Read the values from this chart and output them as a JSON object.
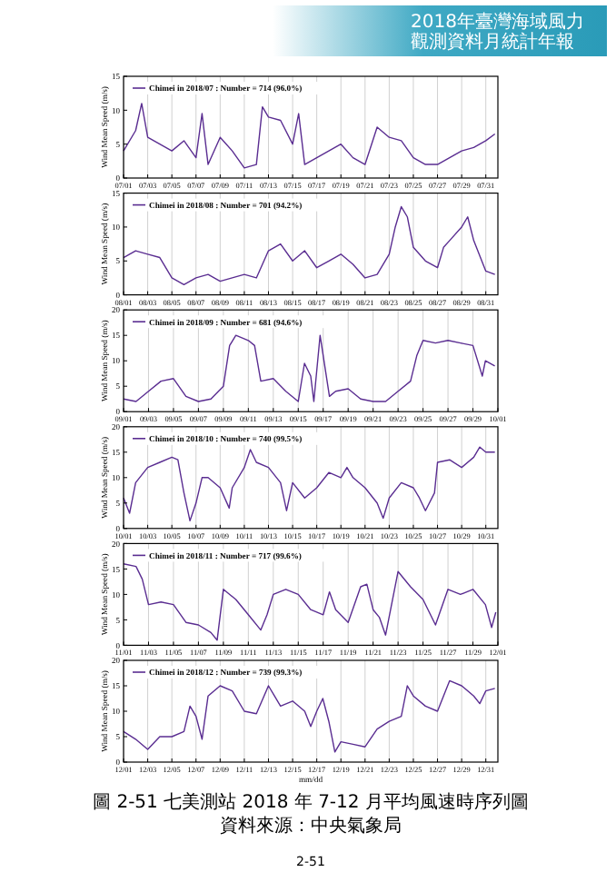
{
  "chart_data": [
    {
      "type": "line",
      "ylabel": "Wind Mean Speed (m/s)",
      "annotations": [
        "2018年臺灣海域風力",
        "觀測資料月統計年報"
      ],
      "legend": "top left",
      "grid": "x",
      "marker": "none",
      "line_style": "solid",
      "xlim": [
        "2018-07-01",
        "2018-08-01"
      ],
      "ylim": [
        0,
        15
      ],
      "yticks": [
        0,
        5,
        10,
        15
      ],
      "xticks": [
        {
          "value": "2018-07-01",
          "label": "07/01"
        },
        {
          "value": "2018-07-03",
          "label": "07/03"
        },
        {
          "value": "2018-07-05",
          "label": "07/05"
        },
        {
          "value": "2018-07-07",
          "label": "07/07"
        },
        {
          "value": "2018-07-09",
          "label": "07/09"
        },
        {
          "value": "2018-07-11",
          "label": "07/11"
        },
        {
          "value": "2018-07-13",
          "label": "07/13"
        },
        {
          "value": "2018-07-15",
          "label": "07/15"
        },
        {
          "value": "2018-07-17",
          "label": "07/17"
        },
        {
          "value": "2018-07-19",
          "label": "07/19"
        },
        {
          "value": "2018-07-21",
          "label": "07/21"
        },
        {
          "value": "2018-07-23",
          "label": "07/23"
        },
        {
          "value": "2018-07-25",
          "label": "07/25"
        },
        {
          "value": "2018-07-27",
          "label": "07/27"
        },
        {
          "value": "2018-07-29",
          "label": "07/29"
        },
        {
          "value": "2018-07-31",
          "label": "07/31"
        }
      ],
      "series": [
        {
          "name": "Chimei in 2018/07 : Number = 714 (96.0%)",
          "color": "#5a2d91",
          "x": [
            "2018-07-01T00:00",
            "2018-07-02T00:00",
            "2018-07-02T12:00",
            "2018-07-03T00:00",
            "2018-07-04T00:00",
            "2018-07-05T00:00",
            "2018-07-06T00:00",
            "2018-07-07T00:00",
            "2018-07-07T12:00",
            "2018-07-08T00:00",
            "2018-07-09T00:00",
            "2018-07-10T00:00",
            "2018-07-11T00:00",
            "2018-07-12T00:00",
            "2018-07-12T12:00",
            "2018-07-13T00:00",
            "2018-07-14T00:00",
            "2018-07-15T00:00",
            "2018-07-15T12:00",
            "2018-07-16T00:00",
            "2018-07-17T00:00",
            "2018-07-18T00:00",
            "2018-07-19T00:00",
            "2018-07-20T00:00",
            "2018-07-21T00:00",
            "2018-07-22T00:00",
            "2018-07-23T00:00",
            "2018-07-24T00:00",
            "2018-07-25T00:00",
            "2018-07-26T00:00",
            "2018-07-27T00:00",
            "2018-07-28T00:00",
            "2018-07-29T00:00",
            "2018-07-30T00:00",
            "2018-07-31T00:00",
            "2018-07-31T18:00"
          ],
          "values": [
            4,
            7,
            11,
            6,
            5,
            4,
            5.5,
            3,
            9.5,
            2,
            6,
            4,
            1.5,
            2,
            10.5,
            9,
            8.5,
            5,
            9.5,
            2,
            3,
            4,
            5,
            3,
            2,
            7.5,
            6,
            5.5,
            3,
            2,
            2,
            3,
            4,
            4.5,
            5.5,
            6.5
          ]
        }
      ]
    },
    {
      "type": "line",
      "ylabel": "Wind Mean Speed (m/s)",
      "legend": "top left",
      "grid": "x",
      "marker": "none",
      "line_style": "solid",
      "xlim": [
        "2018-08-01",
        "2018-09-01"
      ],
      "ylim": [
        0,
        15
      ],
      "yticks": [
        0,
        5,
        10,
        15
      ],
      "xticks": [
        {
          "value": "2018-08-01",
          "label": "08/01"
        },
        {
          "value": "2018-08-03",
          "label": "08/03"
        },
        {
          "value": "2018-08-05",
          "label": "08/05"
        },
        {
          "value": "2018-08-07",
          "label": "08/07"
        },
        {
          "value": "2018-08-09",
          "label": "08/09"
        },
        {
          "value": "2018-08-11",
          "label": "08/11"
        },
        {
          "value": "2018-08-13",
          "label": "08/13"
        },
        {
          "value": "2018-08-15",
          "label": "08/15"
        },
        {
          "value": "2018-08-17",
          "label": "08/17"
        },
        {
          "value": "2018-08-19",
          "label": "08/19"
        },
        {
          "value": "2018-08-21",
          "label": "08/21"
        },
        {
          "value": "2018-08-23",
          "label": "08/23"
        },
        {
          "value": "2018-08-25",
          "label": "08/25"
        },
        {
          "value": "2018-08-27",
          "label": "08/27"
        },
        {
          "value": "2018-08-29",
          "label": "08/29"
        },
        {
          "value": "2018-08-31",
          "label": "08/31"
        }
      ],
      "series": [
        {
          "name": "Chimei in 2018/08 : Number = 701 (94.2%)",
          "color": "#5a2d91",
          "x": [
            "2018-08-01T00:00",
            "2018-08-02T00:00",
            "2018-08-03T00:00",
            "2018-08-04T00:00",
            "2018-08-05T00:00",
            "2018-08-06T00:00",
            "2018-08-07T00:00",
            "2018-08-08T00:00",
            "2018-08-09T00:00",
            "2018-08-10T00:00",
            "2018-08-11T00:00",
            "2018-08-12T00:00",
            "2018-08-13T00:00",
            "2018-08-14T00:00",
            "2018-08-15T00:00",
            "2018-08-16T00:00",
            "2018-08-17T00:00",
            "2018-08-18T00:00",
            "2018-08-19T00:00",
            "2018-08-20T00:00",
            "2018-08-21T00:00",
            "2018-08-22T00:00",
            "2018-08-23T00:00",
            "2018-08-23T12:00",
            "2018-08-24T00:00",
            "2018-08-24T12:00",
            "2018-08-25T00:00",
            "2018-08-26T00:00",
            "2018-08-27T00:00",
            "2018-08-27T12:00",
            "2018-08-28T00:00",
            "2018-08-29T00:00",
            "2018-08-29T12:00",
            "2018-08-30T00:00",
            "2018-08-31T00:00",
            "2018-08-31T18:00"
          ],
          "values": [
            5.5,
            6.5,
            6,
            5.5,
            2.5,
            1.5,
            2.5,
            3,
            2,
            2.5,
            3,
            2.5,
            6.5,
            7.5,
            5,
            6.5,
            4,
            5,
            6,
            4.5,
            2.5,
            3,
            6,
            10,
            13,
            11.5,
            7,
            5,
            4,
            7,
            8,
            10,
            11.5,
            8,
            3.5,
            3
          ]
        }
      ]
    },
    {
      "type": "line",
      "ylabel": "Wind Mean Speed (m/s)",
      "legend": "top left",
      "grid": "x",
      "marker": "none",
      "line_style": "solid",
      "xlim": [
        "2018-09-01",
        "2018-10-01"
      ],
      "ylim": [
        0,
        20
      ],
      "yticks": [
        0,
        5,
        10,
        15,
        20
      ],
      "xticks": [
        {
          "value": "2018-09-01",
          "label": "09/01"
        },
        {
          "value": "2018-09-03",
          "label": "09/03"
        },
        {
          "value": "2018-09-05",
          "label": "09/05"
        },
        {
          "value": "2018-09-07",
          "label": "09/07"
        },
        {
          "value": "2018-09-09",
          "label": "09/09"
        },
        {
          "value": "2018-09-11",
          "label": "09/11"
        },
        {
          "value": "2018-09-13",
          "label": "09/13"
        },
        {
          "value": "2018-09-15",
          "label": "09/15"
        },
        {
          "value": "2018-09-17",
          "label": "09/17"
        },
        {
          "value": "2018-09-19",
          "label": "09/19"
        },
        {
          "value": "2018-09-21",
          "label": "09/21"
        },
        {
          "value": "2018-09-23",
          "label": "09/23"
        },
        {
          "value": "2018-09-25",
          "label": "09/25"
        },
        {
          "value": "2018-09-27",
          "label": "09/27"
        },
        {
          "value": "2018-09-29",
          "label": "09/29"
        },
        {
          "value": "2018-10-01",
          "label": "10/01"
        }
      ],
      "series": [
        {
          "name": "Chimei in 2018/09 : Number = 681 (94.6%)",
          "color": "#5a2d91",
          "x": [
            "2018-09-01T00:00",
            "2018-09-02T00:00",
            "2018-09-03T00:00",
            "2018-09-04T00:00",
            "2018-09-05T00:00",
            "2018-09-06T00:00",
            "2018-09-07T00:00",
            "2018-09-08T00:00",
            "2018-09-09T00:00",
            "2018-09-09T12:00",
            "2018-09-10T00:00",
            "2018-09-11T00:00",
            "2018-09-11T12:00",
            "2018-09-12T00:00",
            "2018-09-13T00:00",
            "2018-09-14T00:00",
            "2018-09-15T00:00",
            "2018-09-15T12:00",
            "2018-09-16T00:00",
            "2018-09-16T06:00",
            "2018-09-16T18:00",
            "2018-09-17T00:00",
            "2018-09-17T12:00",
            "2018-09-18T00:00",
            "2018-09-19T00:00",
            "2018-09-20T00:00",
            "2018-09-21T00:00",
            "2018-09-22T00:00",
            "2018-09-23T00:00",
            "2018-09-24T00:00",
            "2018-09-24T12:00",
            "2018-09-25T00:00",
            "2018-09-26T00:00",
            "2018-09-27T00:00",
            "2018-09-28T00:00",
            "2018-09-29T00:00",
            "2018-09-29T18:00",
            "2018-09-30T00:00",
            "2018-09-30T18:00"
          ],
          "values": [
            2.5,
            2,
            4,
            6,
            6.5,
            3,
            2,
            2.5,
            5,
            13,
            15,
            14,
            13,
            6,
            6.5,
            4,
            2,
            9.5,
            7,
            2,
            15,
            11,
            3,
            4,
            4.5,
            2.5,
            2,
            2,
            4,
            6,
            11,
            14,
            13.5,
            14,
            13.5,
            13,
            7,
            10,
            9
          ]
        }
      ]
    },
    {
      "type": "line",
      "ylabel": "Wind Mean Speed (m/s)",
      "legend": "top left",
      "grid": "x",
      "marker": "none",
      "line_style": "solid",
      "xlim": [
        "2018-10-01",
        "2018-11-01"
      ],
      "ylim": [
        0,
        20
      ],
      "yticks": [
        0,
        5,
        10,
        15,
        20
      ],
      "xticks": [
        {
          "value": "2018-10-01",
          "label": "10/01"
        },
        {
          "value": "2018-10-03",
          "label": "10/03"
        },
        {
          "value": "2018-10-05",
          "label": "10/05"
        },
        {
          "value": "2018-10-07",
          "label": "10/07"
        },
        {
          "value": "2018-10-09",
          "label": "10/09"
        },
        {
          "value": "2018-10-11",
          "label": "10/11"
        },
        {
          "value": "2018-10-13",
          "label": "10/13"
        },
        {
          "value": "2018-10-15",
          "label": "10/15"
        },
        {
          "value": "2018-10-17",
          "label": "10/17"
        },
        {
          "value": "2018-10-19",
          "label": "10/19"
        },
        {
          "value": "2018-10-21",
          "label": "10/21"
        },
        {
          "value": "2018-10-23",
          "label": "10/23"
        },
        {
          "value": "2018-10-25",
          "label": "10/25"
        },
        {
          "value": "2018-10-27",
          "label": "10/27"
        },
        {
          "value": "2018-10-29",
          "label": "10/29"
        },
        {
          "value": "2018-10-31",
          "label": "10/31"
        }
      ],
      "series": [
        {
          "name": "Chimei in 2018/10 : Number = 740 (99.5%)",
          "color": "#5a2d91",
          "x": [
            "2018-10-01T00:00",
            "2018-10-01T12:00",
            "2018-10-02T00:00",
            "2018-10-03T00:00",
            "2018-10-04T00:00",
            "2018-10-05T00:00",
            "2018-10-05T12:00",
            "2018-10-06T00:00",
            "2018-10-06T12:00",
            "2018-10-07T00:00",
            "2018-10-07T12:00",
            "2018-10-08T00:00",
            "2018-10-09T00:00",
            "2018-10-09T18:00",
            "2018-10-10T00:00",
            "2018-10-11T00:00",
            "2018-10-11T12:00",
            "2018-10-12T00:00",
            "2018-10-13T00:00",
            "2018-10-14T00:00",
            "2018-10-14T12:00",
            "2018-10-15T00:00",
            "2018-10-16T00:00",
            "2018-10-17T00:00",
            "2018-10-18T00:00",
            "2018-10-19T00:00",
            "2018-10-19T12:00",
            "2018-10-20T00:00",
            "2018-10-21T00:00",
            "2018-10-22T00:00",
            "2018-10-22T12:00",
            "2018-10-23T00:00",
            "2018-10-24T00:00",
            "2018-10-25T00:00",
            "2018-10-25T12:00",
            "2018-10-26T00:00",
            "2018-10-26T18:00",
            "2018-10-27T00:00",
            "2018-10-28T00:00",
            "2018-10-29T00:00",
            "2018-10-30T00:00",
            "2018-10-30T12:00",
            "2018-10-31T00:00",
            "2018-10-31T18:00"
          ],
          "values": [
            6,
            3,
            9,
            12,
            13,
            14,
            13.5,
            7,
            1.5,
            5,
            10,
            10,
            8,
            4,
            8,
            12,
            15.5,
            13,
            12,
            9,
            3.5,
            9,
            6,
            8,
            11,
            10,
            12,
            10,
            8,
            5,
            2,
            6,
            9,
            8,
            6,
            3.5,
            7,
            13,
            13.5,
            12,
            14,
            16,
            15,
            15
          ]
        }
      ]
    },
    {
      "type": "line",
      "ylabel": "Wind Mean Speed (m/s)",
      "legend": "top left",
      "grid": "x",
      "marker": "none",
      "line_style": "solid",
      "xlim": [
        "2018-11-01",
        "2018-12-01"
      ],
      "ylim": [
        0,
        20
      ],
      "yticks": [
        0,
        5,
        10,
        15,
        20
      ],
      "xticks": [
        {
          "value": "2018-11-01",
          "label": "11/01"
        },
        {
          "value": "2018-11-03",
          "label": "11/03"
        },
        {
          "value": "2018-11-05",
          "label": "11/05"
        },
        {
          "value": "2018-11-07",
          "label": "11/07"
        },
        {
          "value": "2018-11-09",
          "label": "11/09"
        },
        {
          "value": "2018-11-11",
          "label": "11/11"
        },
        {
          "value": "2018-11-13",
          "label": "11/13"
        },
        {
          "value": "2018-11-15",
          "label": "11/15"
        },
        {
          "value": "2018-11-17",
          "label": "11/17"
        },
        {
          "value": "2018-11-19",
          "label": "11/19"
        },
        {
          "value": "2018-11-21",
          "label": "11/21"
        },
        {
          "value": "2018-11-23",
          "label": "11/23"
        },
        {
          "value": "2018-11-25",
          "label": "11/25"
        },
        {
          "value": "2018-11-27",
          "label": "11/27"
        },
        {
          "value": "2018-11-29",
          "label": "11/29"
        },
        {
          "value": "2018-12-01",
          "label": "12/01"
        }
      ],
      "series": [
        {
          "name": "Chimei in 2018/11 : Number = 717 (99.6%)",
          "color": "#5a2d91",
          "x": [
            "2018-11-01T00:00",
            "2018-11-02T00:00",
            "2018-11-02T12:00",
            "2018-11-03T00:00",
            "2018-11-04T00:00",
            "2018-11-05T00:00",
            "2018-11-06T00:00",
            "2018-11-07T00:00",
            "2018-11-08T00:00",
            "2018-11-08T12:00",
            "2018-11-09T00:00",
            "2018-11-10T00:00",
            "2018-11-11T00:00",
            "2018-11-12T00:00",
            "2018-11-12T12:00",
            "2018-11-13T00:00",
            "2018-11-14T00:00",
            "2018-11-15T00:00",
            "2018-11-16T00:00",
            "2018-11-17T00:00",
            "2018-11-17T12:00",
            "2018-11-18T00:00",
            "2018-11-19T00:00",
            "2018-11-20T00:00",
            "2018-11-20T12:00",
            "2018-11-21T00:00",
            "2018-11-21T12:00",
            "2018-11-22T00:00",
            "2018-11-23T00:00",
            "2018-11-24T00:00",
            "2018-11-25T00:00",
            "2018-11-26T00:00",
            "2018-11-27T00:00",
            "2018-11-28T00:00",
            "2018-11-29T00:00",
            "2018-11-30T00:00",
            "2018-11-30T12:00",
            "2018-11-30T20:00"
          ],
          "values": [
            16,
            15.5,
            13,
            8,
            8.5,
            8,
            4.5,
            4,
            2.5,
            1,
            11,
            9,
            6,
            3,
            6,
            10,
            11,
            10,
            7,
            6,
            10.5,
            7,
            4.5,
            11.5,
            12,
            7,
            5.5,
            2,
            14.5,
            11.5,
            9,
            4,
            11,
            10,
            11,
            8,
            3.5,
            6.5
          ]
        }
      ]
    },
    {
      "type": "line",
      "ylabel": "Wind Mean Speed (m/s)",
      "xlabel": "mm/dd",
      "annotations": [
        "圖 2-51 七美測站 2018 年 7-12 月平均風速時序列圖",
        "資料來源：中央氣象局",
        "2-51"
      ],
      "legend": "top left",
      "grid": "x",
      "marker": "none",
      "line_style": "solid",
      "xlim": [
        "2018-12-01",
        "2019-01-01"
      ],
      "ylim": [
        0,
        20
      ],
      "yticks": [
        0,
        5,
        10,
        15,
        20
      ],
      "xticks": [
        {
          "value": "2018-12-01",
          "label": "12/01"
        },
        {
          "value": "2018-12-03",
          "label": "12/03"
        },
        {
          "value": "2018-12-05",
          "label": "12/05"
        },
        {
          "value": "2018-12-07",
          "label": "12/07"
        },
        {
          "value": "2018-12-09",
          "label": "12/09"
        },
        {
          "value": "2018-12-11",
          "label": "12/11"
        },
        {
          "value": "2018-12-13",
          "label": "12/13"
        },
        {
          "value": "2018-12-15",
          "label": "12/15"
        },
        {
          "value": "2018-12-17",
          "label": "12/17"
        },
        {
          "value": "2018-12-19",
          "label": "12/19"
        },
        {
          "value": "2018-12-21",
          "label": "12/21"
        },
        {
          "value": "2018-12-23",
          "label": "12/23"
        },
        {
          "value": "2018-12-25",
          "label": "12/25"
        },
        {
          "value": "2018-12-27",
          "label": "12/27"
        },
        {
          "value": "2018-12-29",
          "label": "12/29"
        },
        {
          "value": "2018-12-31",
          "label": "12/31"
        }
      ],
      "series": [
        {
          "name": "Chimei in 2018/12 : Number = 739 (99.3%)",
          "color": "#5a2d91",
          "x": [
            "2018-12-01T00:00",
            "2018-12-02T00:00",
            "2018-12-03T00:00",
            "2018-12-04T00:00",
            "2018-12-05T00:00",
            "2018-12-06T00:00",
            "2018-12-06T12:00",
            "2018-12-07T00:00",
            "2018-12-07T12:00",
            "2018-12-08T00:00",
            "2018-12-09T00:00",
            "2018-12-10T00:00",
            "2018-12-11T00:00",
            "2018-12-12T00:00",
            "2018-12-13T00:00",
            "2018-12-14T00:00",
            "2018-12-15T00:00",
            "2018-12-16T00:00",
            "2018-12-16T12:00",
            "2018-12-17T00:00",
            "2018-12-17T12:00",
            "2018-12-18T00:00",
            "2018-12-18T12:00",
            "2018-12-19T00:00",
            "2018-12-20T00:00",
            "2018-12-21T00:00",
            "2018-12-22T00:00",
            "2018-12-23T00:00",
            "2018-12-24T00:00",
            "2018-12-24T12:00",
            "2018-12-25T00:00",
            "2018-12-26T00:00",
            "2018-12-27T00:00",
            "2018-12-28T00:00",
            "2018-12-29T00:00",
            "2018-12-30T00:00",
            "2018-12-30T12:00",
            "2018-12-31T00:00",
            "2018-12-31T18:00"
          ],
          "values": [
            6,
            4.5,
            2.5,
            5,
            5,
            6,
            11,
            9,
            4.5,
            13,
            15,
            14,
            10,
            9.5,
            15,
            11,
            12,
            10,
            7,
            10,
            12.5,
            8,
            2,
            4,
            3.5,
            3,
            6.5,
            8,
            9,
            15,
            13,
            11,
            10,
            16,
            15,
            13,
            11.5,
            14,
            14.5
          ]
        }
      ]
    }
  ]
}
